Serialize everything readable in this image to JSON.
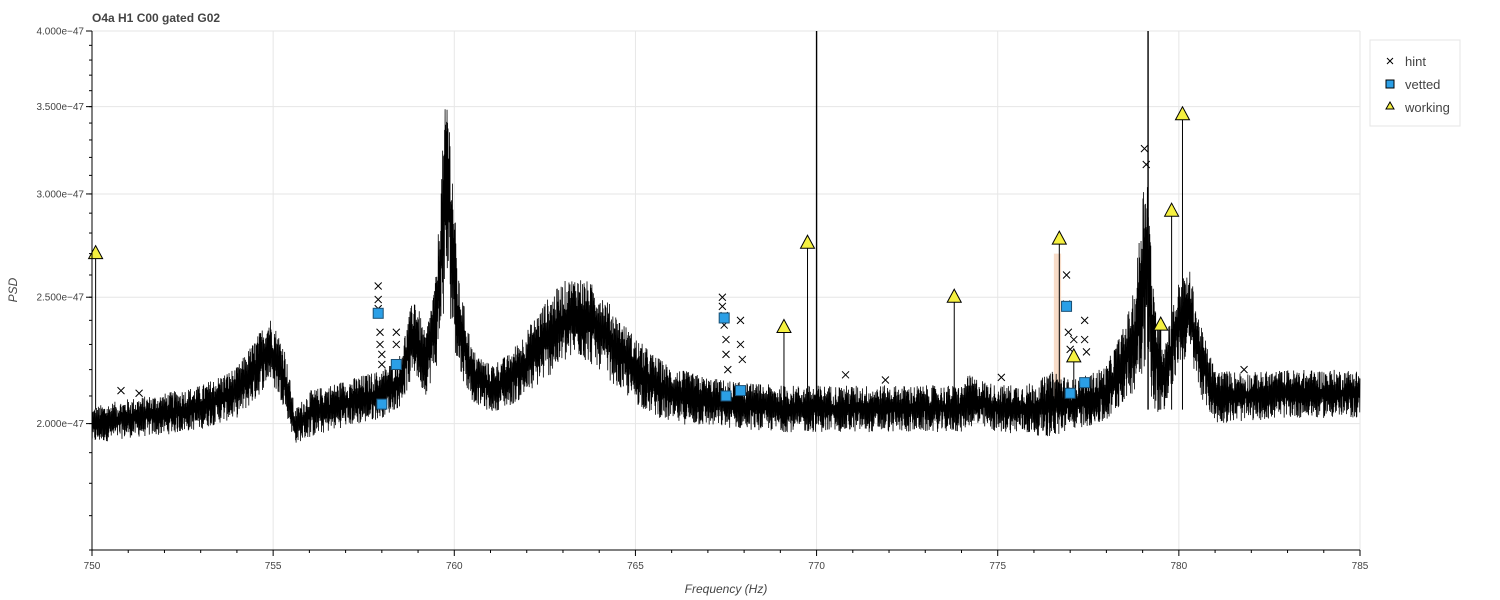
{
  "chart_data": {
    "type": "line",
    "title": "O4a H1 C00 gated G02",
    "xlabel": "Frequency (Hz)",
    "ylabel": "PSD",
    "xlim": [
      750,
      785
    ],
    "ylim": [
      1.6e-47,
      4e-47
    ],
    "y_scale": "log",
    "x_ticks": [
      {
        "value": 750,
        "label": "750"
      },
      {
        "value": 755,
        "label": "755"
      },
      {
        "value": 760,
        "label": "760"
      },
      {
        "value": 765,
        "label": "765"
      },
      {
        "value": 770,
        "label": "770"
      },
      {
        "value": 775,
        "label": "775"
      },
      {
        "value": 780,
        "label": "780"
      },
      {
        "value": 785,
        "label": "785"
      }
    ],
    "y_ticks": [
      {
        "value": 2e-47,
        "label": "2.000e−47"
      },
      {
        "value": 2.5e-47,
        "label": "2.500e−47"
      },
      {
        "value": 3e-47,
        "label": "3.000e−47"
      },
      {
        "value": 3.5e-47,
        "label": "3.500e−47"
      },
      {
        "value": 4e-47,
        "label": "4.000e−47"
      }
    ],
    "grid": true,
    "legend_position": "top-right",
    "colors": {
      "spectrum": "#000000",
      "vetted": "#2b9fe6",
      "working": "#f5f040",
      "hint": "#000000",
      "highlight": "#f5cdb0"
    },
    "spectrum_envelope": {
      "x": [
        750,
        751,
        752,
        753,
        754,
        754.5,
        754.9,
        755.3,
        755.6,
        756,
        756.5,
        757,
        757.5,
        758,
        758.5,
        758.9,
        759.2,
        759.5,
        759.8,
        760.1,
        760.5,
        761,
        761.5,
        762,
        762.5,
        763,
        763.4,
        764,
        764.5,
        765,
        765.5,
        766,
        767,
        768,
        769,
        770,
        771,
        772,
        773,
        774,
        774.2,
        775,
        776,
        776.6,
        777,
        777.5,
        778,
        778.5,
        778.8,
        779.1,
        779.3,
        779.6,
        780,
        780.3,
        780.6,
        781,
        782,
        783,
        784,
        785
      ],
      "upper": [
        2.06e-47,
        2.09e-47,
        2.11e-47,
        2.14e-47,
        2.21e-47,
        2.32e-47,
        2.42e-47,
        2.3e-47,
        2.05e-47,
        2.12e-47,
        2.14e-47,
        2.16e-47,
        2.18e-47,
        2.2e-47,
        2.26e-47,
        2.52e-47,
        2.34e-47,
        2.6e-47,
        3.68e-47,
        2.6e-47,
        2.28e-47,
        2.22e-47,
        2.26e-47,
        2.36e-47,
        2.48e-47,
        2.57e-47,
        2.6e-47,
        2.54e-47,
        2.42e-47,
        2.33e-47,
        2.26e-47,
        2.21e-47,
        2.17e-47,
        2.15e-47,
        2.14e-47,
        2.14e-47,
        2.14e-47,
        2.14e-47,
        2.14e-47,
        2.14e-47,
        2.18e-47,
        2.14e-47,
        2.15e-47,
        2.2e-47,
        2.16e-47,
        2.18e-47,
        2.22e-47,
        2.38e-47,
        2.55e-47,
        3.25e-47,
        2.52e-47,
        2.32e-47,
        2.57e-47,
        2.62e-47,
        2.38e-47,
        2.2e-47,
        2.19e-47,
        2.2e-47,
        2.2e-47,
        2.2e-47
      ],
      "lower": [
        1.93e-47,
        1.95e-47,
        1.96e-47,
        1.98e-47,
        2.02e-47,
        2.08e-47,
        2.16e-47,
        2.06e-47,
        1.93e-47,
        1.95e-47,
        1.97e-47,
        1.99e-47,
        2e-47,
        2.02e-47,
        2.06e-47,
        2.18e-47,
        2.1e-47,
        2.2e-47,
        2.5e-47,
        2.2e-47,
        2.08e-47,
        2.04e-47,
        2.06e-47,
        2.1e-47,
        2.16e-47,
        2.22e-47,
        2.25e-47,
        2.2e-47,
        2.13e-47,
        2.07e-47,
        2.03e-47,
        2e-47,
        1.99e-47,
        1.98e-47,
        1.97e-47,
        1.97e-47,
        1.97e-47,
        1.97e-47,
        1.97e-47,
        1.97e-47,
        1.99e-47,
        1.97e-47,
        1.96e-47,
        1.95e-47,
        1.98e-47,
        1.99e-47,
        2e-47,
        2.08e-47,
        2.12e-47,
        2.22e-47,
        2.05e-47,
        2.02e-47,
        2.22e-47,
        2.25e-47,
        2.1e-47,
        2e-47,
        2.01e-47,
        2.02e-47,
        2.02e-47,
        2.02e-47
      ]
    },
    "spikes": [
      {
        "x": 770.0,
        "y": 4e-47
      },
      {
        "x": 779.15,
        "y": 4e-47
      }
    ],
    "highlight_band": {
      "x0": 776.55,
      "x1": 776.75,
      "y0": 2.05e-47,
      "y1": 2.7e-47
    },
    "series": [
      {
        "name": "hint",
        "marker": "x",
        "points": [
          {
            "x": 750.8,
            "y": 2.12e-47
          },
          {
            "x": 751.3,
            "y": 2.11e-47
          },
          {
            "x": 757.9,
            "y": 2.55e-47
          },
          {
            "x": 757.9,
            "y": 2.49e-47
          },
          {
            "x": 757.9,
            "y": 2.45e-47
          },
          {
            "x": 757.95,
            "y": 2.35e-47
          },
          {
            "x": 757.95,
            "y": 2.3e-47
          },
          {
            "x": 758.0,
            "y": 2.26e-47
          },
          {
            "x": 758.0,
            "y": 2.22e-47
          },
          {
            "x": 758.4,
            "y": 2.35e-47
          },
          {
            "x": 758.4,
            "y": 2.3e-47
          },
          {
            "x": 767.4,
            "y": 2.5e-47
          },
          {
            "x": 767.4,
            "y": 2.46e-47
          },
          {
            "x": 767.45,
            "y": 2.42e-47
          },
          {
            "x": 767.45,
            "y": 2.38e-47
          },
          {
            "x": 767.5,
            "y": 2.32e-47
          },
          {
            "x": 767.5,
            "y": 2.26e-47
          },
          {
            "x": 767.55,
            "y": 2.2e-47
          },
          {
            "x": 767.9,
            "y": 2.4e-47
          },
          {
            "x": 767.9,
            "y": 2.3e-47
          },
          {
            "x": 767.95,
            "y": 2.24e-47
          },
          {
            "x": 770.8,
            "y": 2.18e-47
          },
          {
            "x": 771.9,
            "y": 2.16e-47
          },
          {
            "x": 775.1,
            "y": 2.17e-47
          },
          {
            "x": 776.9,
            "y": 2.6e-47
          },
          {
            "x": 776.9,
            "y": 2.47e-47
          },
          {
            "x": 776.95,
            "y": 2.35e-47
          },
          {
            "x": 777.0,
            "y": 2.28e-47
          },
          {
            "x": 777.1,
            "y": 2.32e-47
          },
          {
            "x": 777.4,
            "y": 2.4e-47
          },
          {
            "x": 777.4,
            "y": 2.32e-47
          },
          {
            "x": 777.45,
            "y": 2.27e-47
          },
          {
            "x": 779.05,
            "y": 3.25e-47
          },
          {
            "x": 779.1,
            "y": 3.16e-47
          },
          {
            "x": 781.8,
            "y": 2.2e-47
          }
        ]
      },
      {
        "name": "vetted",
        "marker": "square",
        "points": [
          {
            "x": 757.9,
            "y": 2.43e-47
          },
          {
            "x": 758.0,
            "y": 2.07e-47
          },
          {
            "x": 758.4,
            "y": 2.22e-47
          },
          {
            "x": 767.45,
            "y": 2.41e-47
          },
          {
            "x": 767.5,
            "y": 2.1e-47
          },
          {
            "x": 767.9,
            "y": 2.12e-47
          },
          {
            "x": 776.9,
            "y": 2.46e-47
          },
          {
            "x": 777.0,
            "y": 2.11e-47
          },
          {
            "x": 777.4,
            "y": 2.15e-47
          }
        ]
      },
      {
        "name": "working",
        "marker": "triangle",
        "points": [
          {
            "x": 750.1,
            "y": 2.7e-47
          },
          {
            "x": 769.1,
            "y": 2.37e-47
          },
          {
            "x": 769.75,
            "y": 2.75e-47
          },
          {
            "x": 773.8,
            "y": 2.5e-47
          },
          {
            "x": 776.7,
            "y": 2.77e-47
          },
          {
            "x": 777.1,
            "y": 2.25e-47
          },
          {
            "x": 779.5,
            "y": 2.38e-47
          },
          {
            "x": 779.8,
            "y": 2.91e-47
          },
          {
            "x": 780.1,
            "y": 3.45e-47
          }
        ]
      }
    ]
  }
}
